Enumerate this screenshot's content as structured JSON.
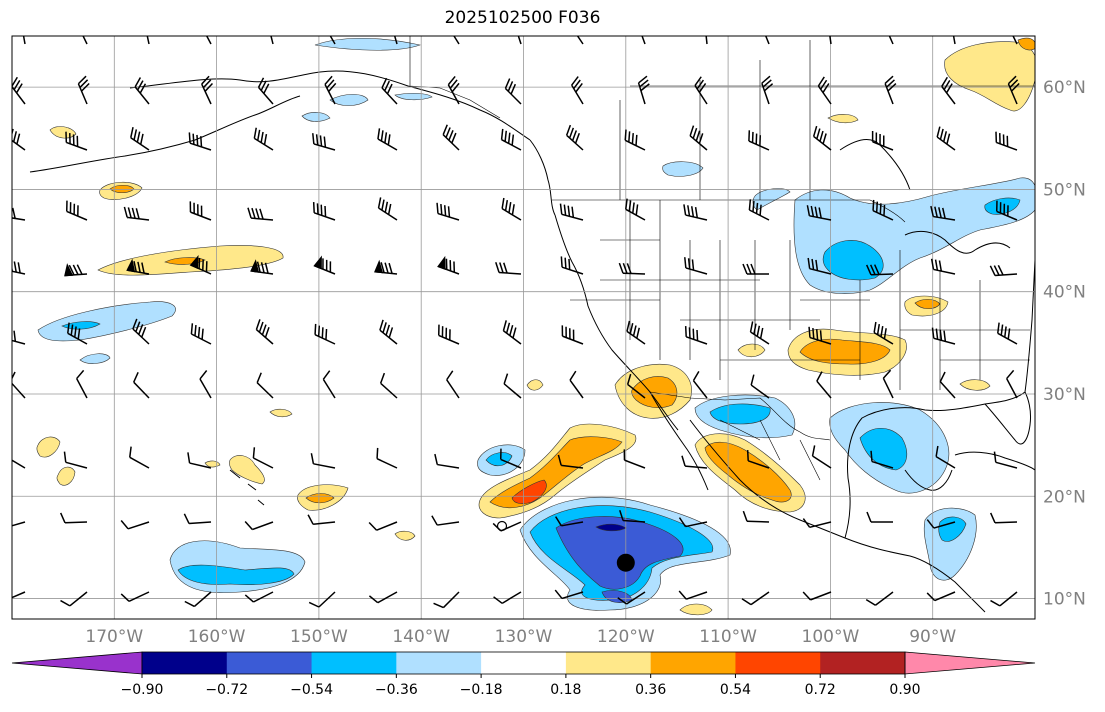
{
  "title": "2025102500 F036",
  "map": {
    "lon_range": [
      -180,
      -80
    ],
    "lat_range": [
      8,
      65
    ],
    "lat_labels": [
      "10°N",
      "20°N",
      "30°N",
      "40°N",
      "50°N",
      "60°N"
    ],
    "lon_labels": [
      "170°W",
      "160°W",
      "150°W",
      "140°W",
      "130°W",
      "120°W",
      "110°W",
      "100°W",
      "90°W"
    ],
    "marker": {
      "lon": -120,
      "lat": 13.5,
      "label": ""
    }
  },
  "colorbar": {
    "ticks": [
      "−0.90",
      "−0.72",
      "−0.54",
      "−0.36",
      "−0.18",
      "0.18",
      "0.36",
      "0.54",
      "0.72",
      "0.90"
    ],
    "colors": {
      "under": "#9932cc",
      "bins": [
        "#00008b",
        "#3b5bd6",
        "#00bfff",
        "#b0e0ff",
        "#ffffff",
        "#ffe88a",
        "#ffa500",
        "#ff4500",
        "#b22222"
      ],
      "over": "#ff88aa"
    }
  },
  "anomaly_regions": [
    {
      "name": "mexico-pacific-negative",
      "center": [
        -120,
        14
      ],
      "sign": "negative",
      "peak": "-0.72"
    },
    {
      "name": "central-pacific-negative",
      "center": [
        -156,
        12
      ],
      "sign": "negative",
      "peak": "-0.54"
    },
    {
      "name": "baja-positive",
      "center": [
        -128,
        22
      ],
      "sign": "positive",
      "peak": "0.72"
    },
    {
      "name": "mexico-positive",
      "center": [
        -110,
        25
      ],
      "sign": "positive",
      "peak": "0.54"
    },
    {
      "name": "southern-plains-positive",
      "center": [
        -100,
        34
      ],
      "sign": "positive",
      "peak": "0.54"
    },
    {
      "name": "great-lakes-negative",
      "center": [
        -96,
        45
      ],
      "sign": "negative",
      "peak": "-0.54"
    },
    {
      "name": "gulf-negative",
      "center": [
        -92,
        24
      ],
      "sign": "negative",
      "peak": "-0.54"
    },
    {
      "name": "npac-positive",
      "center": [
        -163,
        42
      ],
      "sign": "positive",
      "peak": "0.36"
    }
  ]
}
